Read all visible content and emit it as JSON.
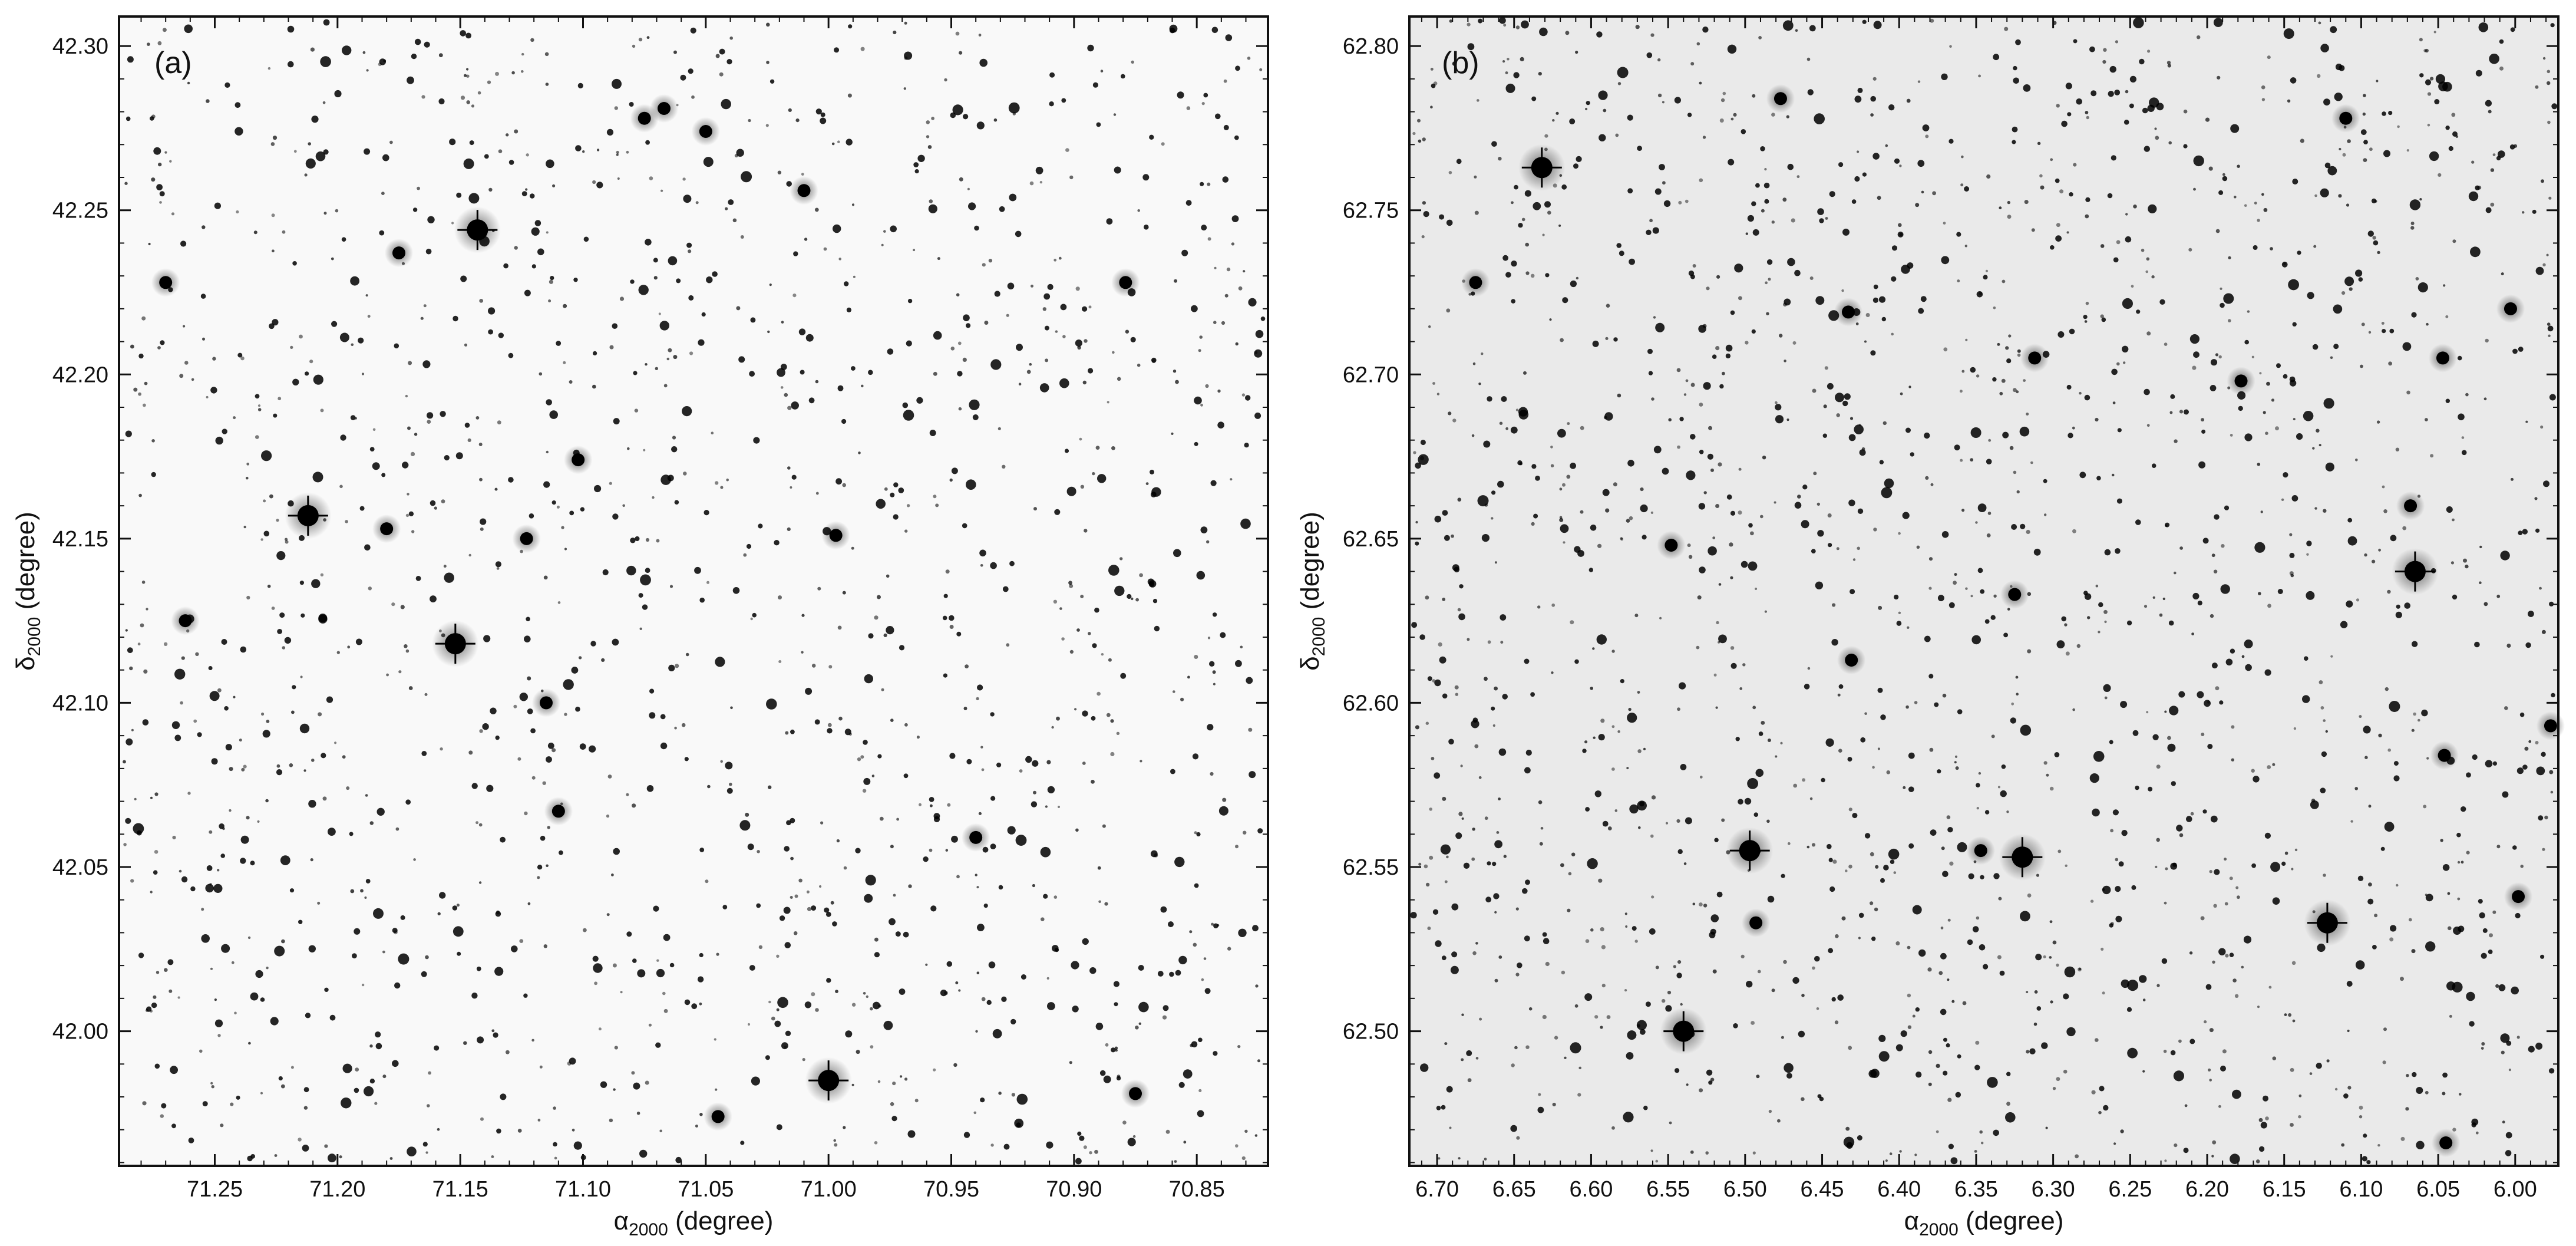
{
  "panels": [
    {
      "label": "(a)",
      "background": "#f9f9f9",
      "xlabel_main": "α",
      "xlabel_sub": "2000",
      "xlabel_unit": " (degree)",
      "ylabel_main": "δ",
      "ylabel_sub": "2000",
      "ylabel_unit": " (degree)",
      "xlim": [
        71.289,
        70.821
      ],
      "ylim": [
        41.959,
        42.309
      ],
      "xticks": [
        "71.25",
        "71.20",
        "71.15",
        "71.10",
        "71.05",
        "71.00",
        "70.95",
        "70.90",
        "70.85"
      ],
      "xtick_values": [
        71.25,
        71.2,
        71.15,
        71.1,
        71.05,
        71.0,
        70.95,
        70.9,
        70.85
      ],
      "yticks": [
        "42.00",
        "42.05",
        "42.10",
        "42.15",
        "42.20",
        "42.25",
        "42.30"
      ],
      "ytick_values": [
        42.0,
        42.05,
        42.1,
        42.15,
        42.2,
        42.25,
        42.3
      ],
      "field_star_seed": 7,
      "field_star_count": 1400,
      "bright_stars": [
        [
          71.143,
          42.244,
          3
        ],
        [
          71.212,
          42.157,
          3
        ],
        [
          71.152,
          42.118,
          3
        ],
        [
          71.0,
          41.985,
          3
        ],
        [
          71.262,
          42.125,
          2
        ],
        [
          71.01,
          42.256,
          2
        ],
        [
          71.075,
          42.278,
          2
        ],
        [
          71.102,
          42.174,
          2
        ],
        [
          71.11,
          42.067,
          2
        ],
        [
          70.879,
          42.228,
          2
        ],
        [
          70.875,
          41.981,
          2
        ],
        [
          71.123,
          42.15,
          2
        ],
        [
          70.997,
          42.151,
          2
        ],
        [
          71.05,
          42.274,
          2
        ],
        [
          70.94,
          42.059,
          2
        ],
        [
          71.18,
          42.153,
          2
        ],
        [
          71.045,
          41.974,
          2
        ],
        [
          71.27,
          42.228,
          2
        ],
        [
          71.175,
          42.237,
          2
        ],
        [
          71.115,
          42.1,
          2
        ],
        [
          71.067,
          42.281,
          2
        ]
      ]
    },
    {
      "label": "(b)",
      "background": "#eaeaea",
      "xlabel_main": "α",
      "xlabel_sub": "2000",
      "xlabel_unit": " (degree)",
      "ylabel_main": "δ",
      "ylabel_sub": "2000",
      "ylabel_unit": " (degree)",
      "xlim": [
        6.718,
        5.972
      ],
      "ylim": [
        62.459,
        62.809
      ],
      "xticks": [
        "6.70",
        "6.65",
        "6.60",
        "6.55",
        "6.50",
        "6.45",
        "6.40",
        "6.35",
        "6.30",
        "6.25",
        "6.20",
        "6.15",
        "6.10",
        "6.05",
        "6.00"
      ],
      "xtick_values": [
        6.7,
        6.65,
        6.6,
        6.55,
        6.5,
        6.45,
        6.4,
        6.35,
        6.3,
        6.25,
        6.2,
        6.15,
        6.1,
        6.05,
        6.0
      ],
      "yticks": [
        "62.50",
        "62.55",
        "62.60",
        "62.65",
        "62.70",
        "62.75",
        "62.80"
      ],
      "ytick_values": [
        62.5,
        62.55,
        62.6,
        62.65,
        62.7,
        62.75,
        62.8
      ],
      "field_star_seed": 23,
      "field_star_count": 1700,
      "bright_stars": [
        [
          6.632,
          62.763,
          3
        ],
        [
          6.497,
          62.555,
          3
        ],
        [
          6.32,
          62.553,
          3
        ],
        [
          6.54,
          62.5,
          3
        ],
        [
          6.122,
          62.533,
          3
        ],
        [
          6.065,
          62.64,
          3
        ],
        [
          6.045,
          62.466,
          2
        ],
        [
          6.548,
          62.648,
          2
        ],
        [
          6.431,
          62.613,
          2
        ],
        [
          6.068,
          62.66,
          2
        ],
        [
          6.046,
          62.584,
          2
        ],
        [
          5.977,
          62.593,
          2
        ],
        [
          6.325,
          62.633,
          2
        ],
        [
          6.347,
          62.555,
          2
        ],
        [
          6.047,
          62.705,
          2
        ],
        [
          6.675,
          62.728,
          2
        ],
        [
          6.433,
          62.719,
          2
        ],
        [
          6.312,
          62.705,
          2
        ],
        [
          6.493,
          62.533,
          2
        ],
        [
          6.003,
          62.72,
          2
        ],
        [
          6.477,
          62.784,
          2
        ],
        [
          5.998,
          62.541,
          2
        ],
        [
          6.11,
          62.778,
          2
        ],
        [
          6.178,
          62.698,
          2
        ]
      ]
    }
  ]
}
